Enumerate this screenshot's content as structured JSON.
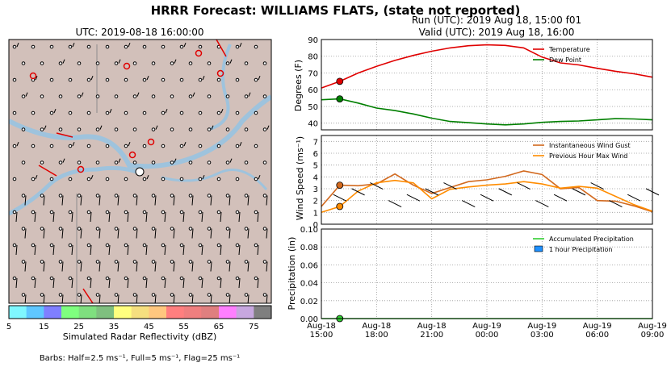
{
  "title": "HRRR Forecast: WILLIAMS FLATS, (state not reported)",
  "map": {
    "title": "UTC: 2019-08-18 16:00:00",
    "colorbar_label": "Simulated Radar Reflectivity (dBZ)",
    "colorbar_ticks": [
      "5",
      "15",
      "25",
      "35",
      "45",
      "55",
      "65",
      "75"
    ],
    "colorbar_colors": [
      "#7ff7ff",
      "#5fc7ff",
      "#7f7fff",
      "#7fff7f",
      "#7fdf7f",
      "#7fbf7f",
      "#ffff7f",
      "#f5df7f",
      "#ffc77f",
      "#ff7f7f",
      "#ef7f7f",
      "#df7f7f",
      "#ff7fff",
      "#c7a7df",
      "#7f7f7f"
    ],
    "barbs_note": "Barbs: Half=2.5 ms⁻¹, Full=5 ms⁻¹, Flag=25 ms⁻¹"
  },
  "run_label": "Run (UTC): 2019 Aug 18, 15:00 f01",
  "valid_label": "Valid (UTC): 2019 Aug 18, 16:00",
  "chart_data": [
    {
      "type": "line",
      "x": [
        "2019-08-18 15:00",
        "2019-08-18 16:00",
        "2019-08-18 17:00",
        "2019-08-18 18:00",
        "2019-08-18 19:00",
        "2019-08-18 20:00",
        "2019-08-18 21:00",
        "2019-08-18 22:00",
        "2019-08-18 23:00",
        "2019-08-19 00:00",
        "2019-08-19 01:00",
        "2019-08-19 02:00",
        "2019-08-19 03:00",
        "2019-08-19 04:00",
        "2019-08-19 05:00",
        "2019-08-19 06:00",
        "2019-08-19 07:00",
        "2019-08-19 08:00",
        "2019-08-19 09:00"
      ],
      "series": [
        {
          "name": "Temperature",
          "color": "#e00000",
          "values": [
            61,
            65,
            70,
            74,
            77.5,
            80.5,
            83,
            85,
            86.3,
            86.8,
            86.5,
            85,
            79.5,
            76,
            74.8,
            72.8,
            71,
            69.5,
            67.5
          ]
        },
        {
          "name": "Dew Point",
          "color": "#007f00",
          "values": [
            54,
            54.5,
            52,
            49,
            47.5,
            45.5,
            43,
            41,
            40.3,
            39.5,
            39,
            39.5,
            40.5,
            41,
            41.3,
            42,
            42.7,
            42.5,
            42
          ]
        }
      ],
      "ylabel": "Degrees (F)",
      "ylim": [
        36,
        90
      ],
      "yticks": [
        40,
        50,
        60,
        70,
        80,
        90
      ],
      "legend": "top-right",
      "grid": true
    },
    {
      "type": "line",
      "x": [
        "2019-08-18 15:00",
        "2019-08-18 16:00",
        "2019-08-18 17:00",
        "2019-08-18 18:00",
        "2019-08-18 19:00",
        "2019-08-18 20:00",
        "2019-08-18 21:00",
        "2019-08-18 22:00",
        "2019-08-18 23:00",
        "2019-08-19 00:00",
        "2019-08-19 01:00",
        "2019-08-19 02:00",
        "2019-08-19 03:00",
        "2019-08-19 04:00",
        "2019-08-19 05:00",
        "2019-08-19 06:00",
        "2019-08-19 07:00",
        "2019-08-19 08:00",
        "2019-08-19 09:00"
      ],
      "series": [
        {
          "name": "Instantaneous Wind Gust",
          "color": "#d2691e",
          "values": [
            1.5,
            3.3,
            3.25,
            3.4,
            4.25,
            3.3,
            2.6,
            3.1,
            3.6,
            3.75,
            4.05,
            4.5,
            4.2,
            3,
            3.1,
            2,
            1.95,
            1.55,
            1.05
          ]
        },
        {
          "name": "Previous Hour Max Wind",
          "color": "#ff8c00",
          "values": [
            1,
            1.5,
            2.8,
            3.5,
            3.7,
            3.5,
            2.15,
            2.95,
            3.15,
            3.3,
            3.4,
            3.6,
            3.4,
            3.05,
            3.2,
            3.05,
            2.35,
            1.65,
            1.1
          ]
        }
      ],
      "ylabel": "Wind Speed (ms⁻¹)",
      "ylim": [
        0,
        7.5
      ],
      "yticks": [
        0,
        1,
        2,
        3,
        4,
        5,
        6,
        7
      ],
      "legend": "top-right",
      "grid": true
    },
    {
      "type": "line",
      "x": [
        "Aug-18 15:00",
        "Aug-18 18:00",
        "Aug-18 21:00",
        "Aug-19 00:00",
        "Aug-19 03:00",
        "Aug-19 06:00",
        "Aug-19 09:00"
      ],
      "series": [
        {
          "name": "Accumulated Precipitation",
          "color": "#32cd32",
          "values": [
            0,
            0,
            0,
            0,
            0,
            0,
            0
          ]
        },
        {
          "name": "1 hour Precipitation",
          "color": "#1e90ff",
          "values": [
            0,
            0,
            0,
            0,
            0,
            0,
            0
          ]
        }
      ],
      "ylabel": "Precipitation (in)",
      "ylim": [
        0,
        0.1
      ],
      "yticks": [
        "0.00",
        "0.02",
        "0.04",
        "0.06",
        "0.08",
        "0.10"
      ],
      "xticks": [
        [
          "Aug-18",
          "15:00"
        ],
        [
          "Aug-18",
          "18:00"
        ],
        [
          "Aug-18",
          "21:00"
        ],
        [
          "Aug-19",
          "00:00"
        ],
        [
          "Aug-19",
          "03:00"
        ],
        [
          "Aug-19",
          "06:00"
        ],
        [
          "Aug-19",
          "09:00"
        ]
      ],
      "legend": "top-right",
      "grid": true
    }
  ]
}
